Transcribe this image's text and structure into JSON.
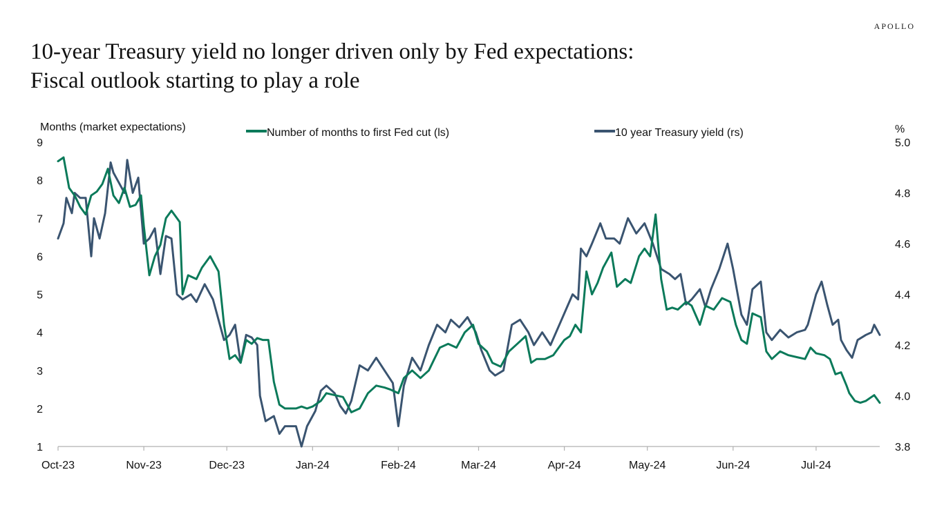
{
  "header": {
    "logo": "APOLLO",
    "title_line1": "10-year Treasury yield no longer driven only by Fed expectations:",
    "title_line2": "Fiscal outlook starting to play a role"
  },
  "colors": {
    "fed_cut": "#0b7a5a",
    "treasury": "#3a5470",
    "axis": "#b0b0b0"
  },
  "chart_data": {
    "type": "line",
    "ylabel_left": "Months (market expectations)",
    "ylabel_right": "%",
    "x_tick_labels": [
      "Oct-23",
      "Nov-23",
      "Dec-23",
      "Jan-24",
      "Feb-24",
      "Mar-24",
      "Apr-24",
      "May-24",
      "Jun-24",
      "Jul-24"
    ],
    "x_tick_dates": [
      "2023-10-01",
      "2023-11-01",
      "2023-12-01",
      "2024-01-01",
      "2024-02-01",
      "2024-03-01",
      "2024-04-01",
      "2024-05-01",
      "2024-06-01",
      "2024-07-01"
    ],
    "x_range": [
      "2023-10-01",
      "2024-07-24"
    ],
    "ylim_left": [
      1,
      9
    ],
    "yticks_left": [
      1,
      2,
      3,
      4,
      5,
      6,
      7,
      8,
      9
    ],
    "ylim_right": [
      3.8,
      5.0
    ],
    "yticks_right": [
      "3.8",
      "4.0",
      "4.2",
      "4.4",
      "4.6",
      "4.8",
      "5.0"
    ],
    "legend_position": "top",
    "grid": false,
    "series": [
      {
        "name": "Number of months to first Fed cut (ls)",
        "axis": "left",
        "points": [
          [
            "2023-10-01",
            8.5
          ],
          [
            "2023-10-03",
            8.6
          ],
          [
            "2023-10-05",
            7.8
          ],
          [
            "2023-10-07",
            7.6
          ],
          [
            "2023-10-09",
            7.3
          ],
          [
            "2023-10-11",
            7.1
          ],
          [
            "2023-10-13",
            7.6
          ],
          [
            "2023-10-15",
            7.7
          ],
          [
            "2023-10-17",
            7.9
          ],
          [
            "2023-10-19",
            8.3
          ],
          [
            "2023-10-21",
            7.6
          ],
          [
            "2023-10-23",
            7.4
          ],
          [
            "2023-10-25",
            7.8
          ],
          [
            "2023-10-27",
            7.3
          ],
          [
            "2023-10-29",
            7.35
          ],
          [
            "2023-10-31",
            7.6
          ],
          [
            "2023-11-01",
            6.8
          ],
          [
            "2023-11-03",
            5.5
          ],
          [
            "2023-11-05",
            6.0
          ],
          [
            "2023-11-07",
            6.3
          ],
          [
            "2023-11-09",
            7.0
          ],
          [
            "2023-11-11",
            7.2
          ],
          [
            "2023-11-14",
            6.9
          ],
          [
            "2023-11-15",
            5.0
          ],
          [
            "2023-11-17",
            5.5
          ],
          [
            "2023-11-20",
            5.4
          ],
          [
            "2023-11-22",
            5.7
          ],
          [
            "2023-11-25",
            6.0
          ],
          [
            "2023-11-28",
            5.6
          ],
          [
            "2023-11-30",
            4.2
          ],
          [
            "2023-12-02",
            3.3
          ],
          [
            "2023-12-04",
            3.4
          ],
          [
            "2023-12-06",
            3.2
          ],
          [
            "2023-12-08",
            3.8
          ],
          [
            "2023-12-10",
            3.7
          ],
          [
            "2023-12-12",
            3.85
          ],
          [
            "2023-12-14",
            3.8
          ],
          [
            "2023-12-16",
            3.8
          ],
          [
            "2023-12-18",
            2.7
          ],
          [
            "2023-12-20",
            2.1
          ],
          [
            "2023-12-22",
            2.0
          ],
          [
            "2023-12-26",
            2.0
          ],
          [
            "2023-12-28",
            2.05
          ],
          [
            "2023-12-30",
            2.0
          ],
          [
            "2024-01-01",
            2.05
          ],
          [
            "2024-01-04",
            2.2
          ],
          [
            "2024-01-06",
            2.4
          ],
          [
            "2024-01-09",
            2.35
          ],
          [
            "2024-01-12",
            2.3
          ],
          [
            "2024-01-15",
            1.9
          ],
          [
            "2024-01-18",
            2.0
          ],
          [
            "2024-01-21",
            2.4
          ],
          [
            "2024-01-24",
            2.6
          ],
          [
            "2024-01-27",
            2.55
          ],
          [
            "2024-01-29",
            2.5
          ],
          [
            "2024-02-01",
            2.4
          ],
          [
            "2024-02-03",
            2.8
          ],
          [
            "2024-02-06",
            3.0
          ],
          [
            "2024-02-09",
            2.8
          ],
          [
            "2024-02-12",
            3.0
          ],
          [
            "2024-02-14",
            3.3
          ],
          [
            "2024-02-16",
            3.6
          ],
          [
            "2024-02-19",
            3.7
          ],
          [
            "2024-02-22",
            3.6
          ],
          [
            "2024-02-25",
            4.0
          ],
          [
            "2024-02-28",
            4.2
          ],
          [
            "2024-03-01",
            3.7
          ],
          [
            "2024-03-04",
            3.5
          ],
          [
            "2024-03-06",
            3.2
          ],
          [
            "2024-03-09",
            3.1
          ],
          [
            "2024-03-12",
            3.5
          ],
          [
            "2024-03-15",
            3.7
          ],
          [
            "2024-03-18",
            3.9
          ],
          [
            "2024-03-20",
            3.2
          ],
          [
            "2024-03-22",
            3.3
          ],
          [
            "2024-03-25",
            3.3
          ],
          [
            "2024-03-28",
            3.4
          ],
          [
            "2024-04-01",
            3.8
          ],
          [
            "2024-04-03",
            3.9
          ],
          [
            "2024-04-05",
            4.2
          ],
          [
            "2024-04-07",
            4.0
          ],
          [
            "2024-04-09",
            5.6
          ],
          [
            "2024-04-11",
            5.0
          ],
          [
            "2024-04-13",
            5.3
          ],
          [
            "2024-04-15",
            5.7
          ],
          [
            "2024-04-18",
            6.1
          ],
          [
            "2024-04-20",
            5.2
          ],
          [
            "2024-04-23",
            5.4
          ],
          [
            "2024-04-25",
            5.3
          ],
          [
            "2024-04-28",
            6.0
          ],
          [
            "2024-04-30",
            6.2
          ],
          [
            "2024-05-02",
            6.0
          ],
          [
            "2024-05-04",
            7.1
          ],
          [
            "2024-05-06",
            5.4
          ],
          [
            "2024-05-08",
            4.6
          ],
          [
            "2024-05-10",
            4.65
          ],
          [
            "2024-05-12",
            4.6
          ],
          [
            "2024-05-15",
            4.8
          ],
          [
            "2024-05-17",
            4.7
          ],
          [
            "2024-05-20",
            4.2
          ],
          [
            "2024-05-22",
            4.7
          ],
          [
            "2024-05-25",
            4.6
          ],
          [
            "2024-05-28",
            4.9
          ],
          [
            "2024-05-31",
            4.8
          ],
          [
            "2024-06-02",
            4.2
          ],
          [
            "2024-06-04",
            3.8
          ],
          [
            "2024-06-06",
            3.7
          ],
          [
            "2024-06-08",
            4.5
          ],
          [
            "2024-06-11",
            4.4
          ],
          [
            "2024-06-13",
            3.5
          ],
          [
            "2024-06-15",
            3.3
          ],
          [
            "2024-06-18",
            3.5
          ],
          [
            "2024-06-21",
            3.4
          ],
          [
            "2024-06-24",
            3.35
          ],
          [
            "2024-06-27",
            3.3
          ],
          [
            "2024-06-29",
            3.6
          ],
          [
            "2024-07-01",
            3.45
          ],
          [
            "2024-07-04",
            3.4
          ],
          [
            "2024-07-06",
            3.3
          ],
          [
            "2024-07-08",
            2.9
          ],
          [
            "2024-07-10",
            2.95
          ],
          [
            "2024-07-12",
            2.6
          ],
          [
            "2024-07-13",
            2.4
          ],
          [
            "2024-07-15",
            2.2
          ],
          [
            "2024-07-17",
            2.15
          ],
          [
            "2024-07-19",
            2.2
          ],
          [
            "2024-07-21",
            2.3
          ],
          [
            "2024-07-22",
            2.35
          ],
          [
            "2024-07-24",
            2.15
          ]
        ]
      },
      {
        "name": "10 year Treasury yield (rs)",
        "axis": "right",
        "points": [
          [
            "2023-10-01",
            4.62
          ],
          [
            "2023-10-03",
            4.68
          ],
          [
            "2023-10-04",
            4.78
          ],
          [
            "2023-10-06",
            4.72
          ],
          [
            "2023-10-07",
            4.8
          ],
          [
            "2023-10-09",
            4.78
          ],
          [
            "2023-10-11",
            4.78
          ],
          [
            "2023-10-13",
            4.55
          ],
          [
            "2023-10-14",
            4.7
          ],
          [
            "2023-10-16",
            4.62
          ],
          [
            "2023-10-18",
            4.72
          ],
          [
            "2023-10-20",
            4.92
          ],
          [
            "2023-10-21",
            4.88
          ],
          [
            "2023-10-23",
            4.84
          ],
          [
            "2023-10-25",
            4.8
          ],
          [
            "2023-10-26",
            4.93
          ],
          [
            "2023-10-28",
            4.8
          ],
          [
            "2023-10-30",
            4.86
          ],
          [
            "2023-11-01",
            4.6
          ],
          [
            "2023-11-03",
            4.62
          ],
          [
            "2023-11-05",
            4.66
          ],
          [
            "2023-11-07",
            4.48
          ],
          [
            "2023-11-09",
            4.63
          ],
          [
            "2023-11-11",
            4.62
          ],
          [
            "2023-11-13",
            4.4
          ],
          [
            "2023-11-15",
            4.38
          ],
          [
            "2023-11-18",
            4.4
          ],
          [
            "2023-11-20",
            4.37
          ],
          [
            "2023-11-23",
            4.44
          ],
          [
            "2023-11-26",
            4.38
          ],
          [
            "2023-11-28",
            4.3
          ],
          [
            "2023-11-30",
            4.22
          ],
          [
            "2023-12-02",
            4.24
          ],
          [
            "2023-12-04",
            4.28
          ],
          [
            "2023-12-06",
            4.13
          ],
          [
            "2023-12-08",
            4.24
          ],
          [
            "2023-12-10",
            4.23
          ],
          [
            "2023-12-12",
            4.2
          ],
          [
            "2023-12-13",
            4.0
          ],
          [
            "2023-12-15",
            3.9
          ],
          [
            "2023-12-18",
            3.92
          ],
          [
            "2023-12-20",
            3.85
          ],
          [
            "2023-12-22",
            3.88
          ],
          [
            "2023-12-26",
            3.88
          ],
          [
            "2023-12-28",
            3.8
          ],
          [
            "2023-12-30",
            3.88
          ],
          [
            "2024-01-02",
            3.94
          ],
          [
            "2024-01-04",
            4.02
          ],
          [
            "2024-01-06",
            4.04
          ],
          [
            "2024-01-09",
            4.01
          ],
          [
            "2024-01-11",
            3.96
          ],
          [
            "2024-01-13",
            3.93
          ],
          [
            "2024-01-15",
            3.98
          ],
          [
            "2024-01-18",
            4.12
          ],
          [
            "2024-01-21",
            4.1
          ],
          [
            "2024-01-24",
            4.15
          ],
          [
            "2024-01-27",
            4.1
          ],
          [
            "2024-01-30",
            4.05
          ],
          [
            "2024-02-01",
            3.88
          ],
          [
            "2024-02-03",
            4.04
          ],
          [
            "2024-02-06",
            4.15
          ],
          [
            "2024-02-09",
            4.1
          ],
          [
            "2024-02-12",
            4.2
          ],
          [
            "2024-02-15",
            4.28
          ],
          [
            "2024-02-18",
            4.25
          ],
          [
            "2024-02-20",
            4.3
          ],
          [
            "2024-02-23",
            4.27
          ],
          [
            "2024-02-26",
            4.31
          ],
          [
            "2024-02-29",
            4.25
          ],
          [
            "2024-03-02",
            4.18
          ],
          [
            "2024-03-05",
            4.1
          ],
          [
            "2024-03-07",
            4.08
          ],
          [
            "2024-03-10",
            4.1
          ],
          [
            "2024-03-13",
            4.28
          ],
          [
            "2024-03-16",
            4.3
          ],
          [
            "2024-03-19",
            4.25
          ],
          [
            "2024-03-21",
            4.2
          ],
          [
            "2024-03-24",
            4.25
          ],
          [
            "2024-03-27",
            4.2
          ],
          [
            "2024-03-31",
            4.3
          ],
          [
            "2024-04-02",
            4.35
          ],
          [
            "2024-04-04",
            4.4
          ],
          [
            "2024-04-06",
            4.38
          ],
          [
            "2024-04-07",
            4.58
          ],
          [
            "2024-04-09",
            4.55
          ],
          [
            "2024-04-11",
            4.6
          ],
          [
            "2024-04-14",
            4.68
          ],
          [
            "2024-04-16",
            4.62
          ],
          [
            "2024-04-19",
            4.62
          ],
          [
            "2024-04-21",
            4.6
          ],
          [
            "2024-04-24",
            4.7
          ],
          [
            "2024-04-27",
            4.64
          ],
          [
            "2024-04-30",
            4.68
          ],
          [
            "2024-05-03",
            4.6
          ],
          [
            "2024-05-06",
            4.5
          ],
          [
            "2024-05-09",
            4.48
          ],
          [
            "2024-05-11",
            4.46
          ],
          [
            "2024-05-13",
            4.48
          ],
          [
            "2024-05-15",
            4.36
          ],
          [
            "2024-05-17",
            4.38
          ],
          [
            "2024-05-20",
            4.42
          ],
          [
            "2024-05-22",
            4.35
          ],
          [
            "2024-05-24",
            4.42
          ],
          [
            "2024-05-27",
            4.5
          ],
          [
            "2024-05-30",
            4.6
          ],
          [
            "2024-06-01",
            4.5
          ],
          [
            "2024-06-04",
            4.32
          ],
          [
            "2024-06-06",
            4.28
          ],
          [
            "2024-06-08",
            4.42
          ],
          [
            "2024-06-11",
            4.45
          ],
          [
            "2024-06-13",
            4.25
          ],
          [
            "2024-06-15",
            4.22
          ],
          [
            "2024-06-18",
            4.26
          ],
          [
            "2024-06-21",
            4.23
          ],
          [
            "2024-06-24",
            4.25
          ],
          [
            "2024-06-27",
            4.26
          ],
          [
            "2024-06-28",
            4.28
          ],
          [
            "2024-07-01",
            4.4
          ],
          [
            "2024-07-03",
            4.45
          ],
          [
            "2024-07-05",
            4.36
          ],
          [
            "2024-07-07",
            4.28
          ],
          [
            "2024-07-09",
            4.3
          ],
          [
            "2024-07-10",
            4.22
          ],
          [
            "2024-07-12",
            4.18
          ],
          [
            "2024-07-14",
            4.15
          ],
          [
            "2024-07-16",
            4.22
          ],
          [
            "2024-07-19",
            4.24
          ],
          [
            "2024-07-21",
            4.25
          ],
          [
            "2024-07-22",
            4.28
          ],
          [
            "2024-07-24",
            4.24
          ]
        ]
      }
    ]
  }
}
